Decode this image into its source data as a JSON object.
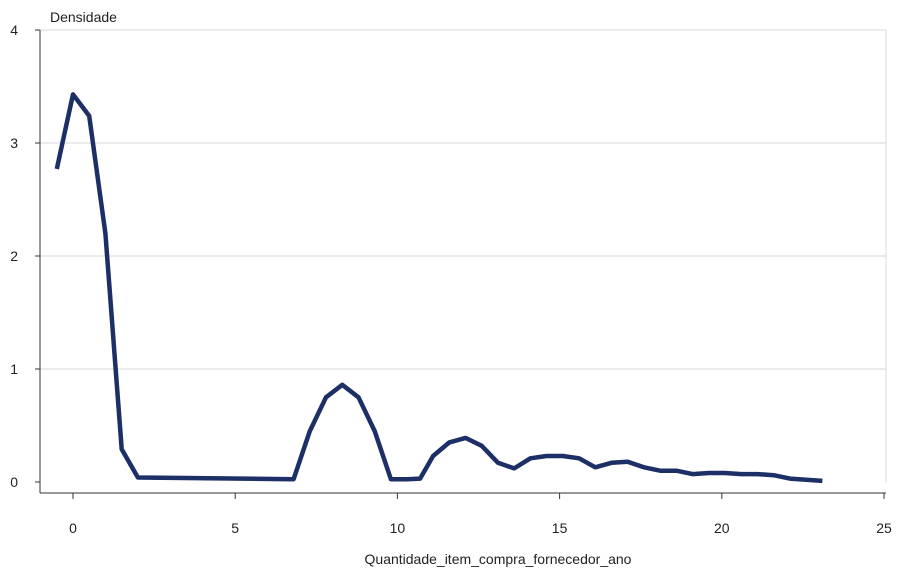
{
  "chart_data": {
    "type": "line",
    "title": "",
    "ylabel": "Densidade",
    "xlabel": "Quantidade_item_compra_fornecedor_ano",
    "xlim": [
      -1,
      25
    ],
    "ylim": [
      0,
      4
    ],
    "xticks": [
      0,
      5,
      10,
      15,
      20,
      25
    ],
    "yticks": [
      0,
      1,
      2,
      3,
      4
    ],
    "grid": "horizontal",
    "line_color": "#1c2f66",
    "series": [
      {
        "x": [
          -0.5,
          0.0,
          0.5,
          1.0,
          1.5,
          2.0,
          6.8,
          7.3,
          7.8,
          8.3,
          8.8,
          9.3,
          9.8,
          10.3,
          10.7,
          11.1,
          11.6,
          12.1,
          12.6,
          13.1,
          13.6,
          14.1,
          14.6,
          15.1,
          15.6,
          16.1,
          16.6,
          17.1,
          17.6,
          18.1,
          18.6,
          19.1,
          19.6,
          20.1,
          20.6,
          21.1,
          21.6,
          22.1,
          22.6,
          23.1
        ],
        "y": [
          2.77,
          3.43,
          3.24,
          2.2,
          0.29,
          0.04,
          0.025,
          0.45,
          0.75,
          0.86,
          0.75,
          0.45,
          0.025,
          0.025,
          0.03,
          0.23,
          0.35,
          0.39,
          0.32,
          0.17,
          0.12,
          0.21,
          0.23,
          0.23,
          0.21,
          0.13,
          0.17,
          0.18,
          0.13,
          0.1,
          0.1,
          0.07,
          0.08,
          0.08,
          0.07,
          0.07,
          0.06,
          0.03,
          0.02,
          0.01
        ]
      }
    ]
  }
}
